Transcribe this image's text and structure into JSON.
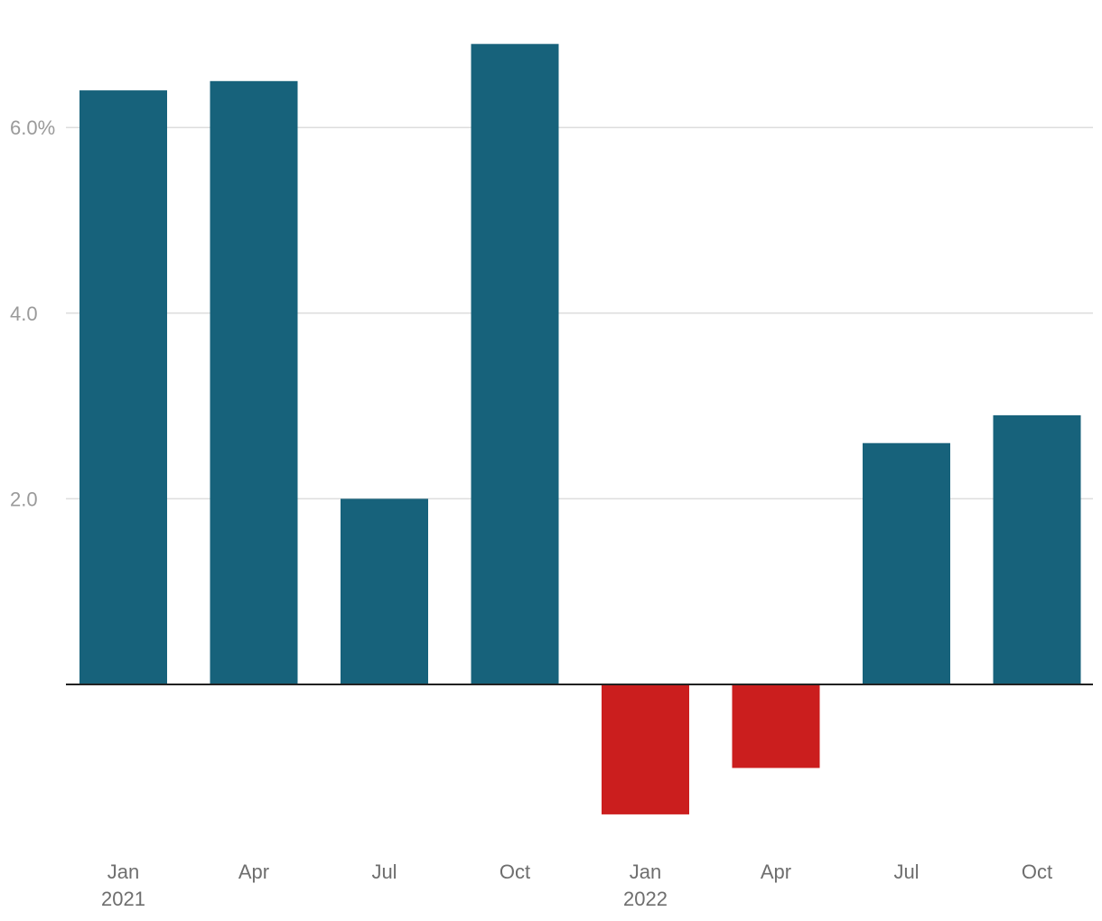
{
  "chart_data": {
    "type": "bar",
    "categories": [
      "Jan 2021",
      "Apr 2021",
      "Jul 2021",
      "Oct 2021",
      "Jan 2022",
      "Apr 2022",
      "Jul 2022",
      "Oct 2022"
    ],
    "x_tick_labels": [
      {
        "month": "Jan",
        "year": "2021"
      },
      {
        "month": "Apr",
        "year": ""
      },
      {
        "month": "Jul",
        "year": ""
      },
      {
        "month": "Oct",
        "year": ""
      },
      {
        "month": "Jan",
        "year": "2022"
      },
      {
        "month": "Apr",
        "year": ""
      },
      {
        "month": "Jul",
        "year": ""
      },
      {
        "month": "Oct",
        "year": ""
      }
    ],
    "values": [
      6.4,
      6.5,
      2.0,
      6.9,
      -1.4,
      -0.9,
      2.6,
      2.9
    ],
    "ylim": [
      -1.6,
      7.1
    ],
    "y_ticks": [
      {
        "value": 6,
        "label": "6.0%"
      },
      {
        "value": 4,
        "label": "4.0"
      },
      {
        "value": 2,
        "label": "2.0"
      }
    ],
    "title": "",
    "xlabel": "",
    "ylabel": "",
    "grid": true,
    "colors": {
      "positive": "#17627b",
      "negative": "#cb1e1e"
    }
  }
}
